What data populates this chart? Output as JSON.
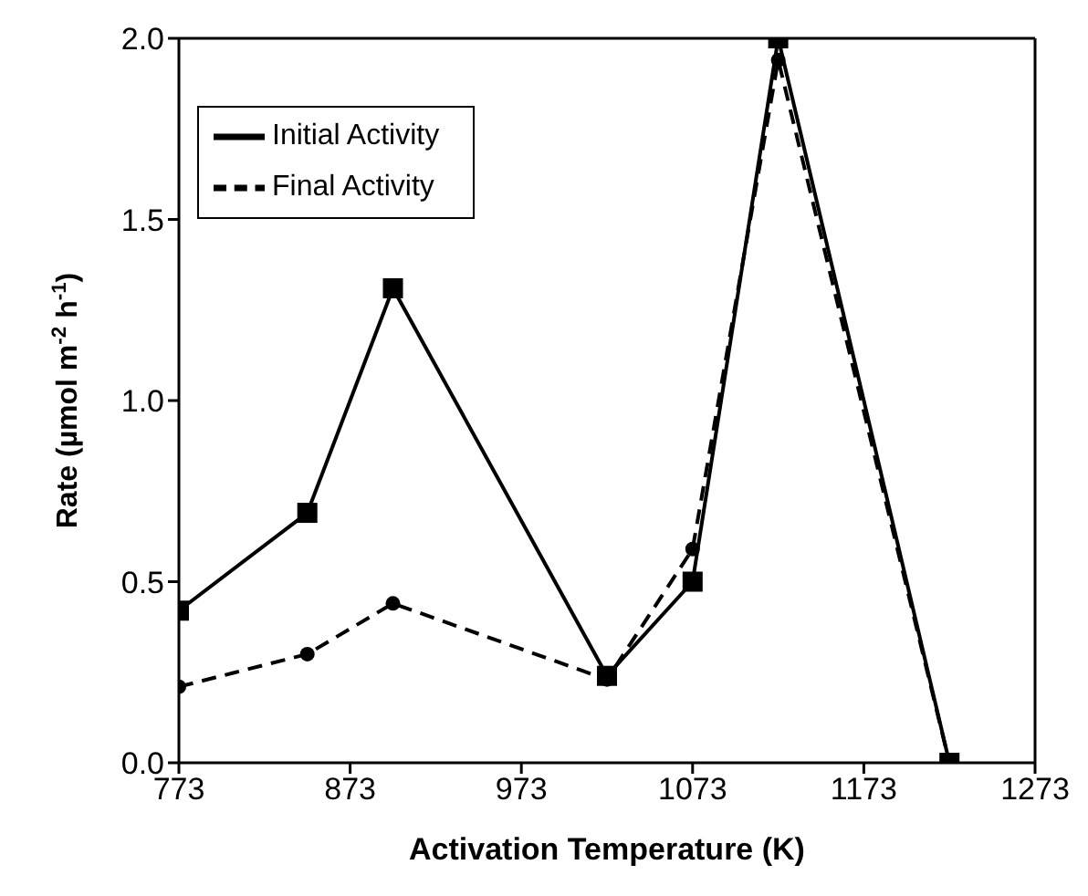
{
  "chart_data": {
    "type": "line",
    "xlabel": "Activation  Temperature  (K)",
    "ylabel": "Rate (µmol m$^{-2}$ h$^{-1}$)",
    "x": [
      773,
      848,
      898,
      1023,
      1073,
      1123,
      1223
    ],
    "xlim": [
      773,
      1273
    ],
    "xticks": [
      773,
      873,
      973,
      1073,
      1173,
      1273
    ],
    "ylim": [
      0,
      2
    ],
    "yticks": [
      {
        "value": 0,
        "label": "0.0"
      },
      {
        "value": 0.5,
        "label": "0.5"
      },
      {
        "value": 1,
        "label": "1.0"
      },
      {
        "value": 1.5,
        "label": "1.5"
      },
      {
        "value": 2,
        "label": "2.0"
      }
    ],
    "grid": false,
    "legend": "top left",
    "series": [
      {
        "name": "Initial Activity",
        "color": "#000000",
        "marker": "square",
        "line_style": "solid",
        "values": [
          0.42,
          0.69,
          1.31,
          0.24,
          0.5,
          2.0,
          0.0
        ]
      },
      {
        "name": "Final Activity",
        "color": "#000000",
        "marker": "circle",
        "line_style": "dashed",
        "values": [
          0.21,
          0.3,
          0.44,
          0.23,
          0.59,
          1.94,
          0.0
        ]
      }
    ]
  }
}
